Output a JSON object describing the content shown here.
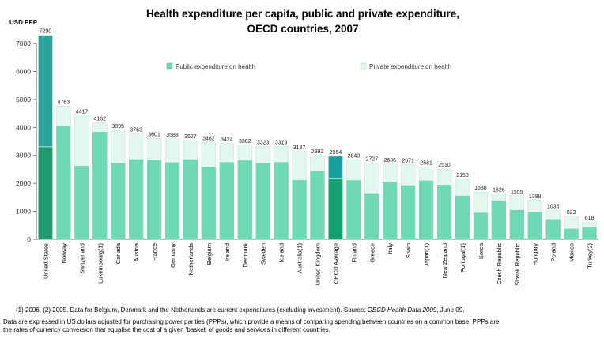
{
  "chart_data": {
    "type": "bar",
    "stacked": true,
    "title_line1": "Health expenditure per capita, public and private expenditure,",
    "title_line2": "OECD countries, 2007",
    "ylabel": "USD PPP",
    "ylim": [
      0,
      7000
    ],
    "yticks": [
      0,
      1000,
      2000,
      3000,
      4000,
      5000,
      6000,
      7000
    ],
    "grid": false,
    "legend_position": "top",
    "series": [
      {
        "name": "Public expenditure on health",
        "color": "#6fd8b4",
        "values": [
          3307,
          4051,
          2640,
          3850,
          2740,
          2870,
          2840,
          2760,
          2870,
          2600,
          2770,
          2830,
          2730,
          2770,
          2130,
          2460,
          2180,
          2120,
          1660,
          2060,
          1940,
          2110,
          1960,
          1570,
          960,
          1400,
          1060,
          990,
          730,
          390,
          430
        ]
      },
      {
        "name": "Private expenditure on health",
        "color": "#e2f8ee",
        "values": [
          3983,
          712,
          1777,
          312,
          1155,
          893,
          761,
          828,
          657,
          862,
          654,
          532,
          593,
          549,
          1007,
          532,
          784,
          720,
          1067,
          626,
          731,
          471,
          550,
          580,
          728,
          226,
          495,
          398,
          305,
          433,
          188
        ]
      }
    ],
    "highlight_colors": {
      "United States": {
        "public": "#1e9a6e",
        "private": "#2aa39a"
      },
      "OECD Average": {
        "public": "#14a070",
        "private": "#17a0a0"
      }
    },
    "categories": [
      "United States",
      "Norway",
      "Switzerland",
      "Luxembourg(1)",
      "Canada",
      "Austria",
      "France",
      "Germany",
      "Netherlands",
      "Belgium",
      "Ireland",
      "Denmark",
      "Sweden",
      "Iceland",
      "Australia(1)",
      "United Kingdom",
      "OECD Average",
      "Finland",
      "Greece",
      "Italy",
      "Spain",
      "Japan(1)",
      "New Zealand",
      "Portugal(1)",
      "Korea",
      "Czech Republic",
      "Slovak Republic",
      "Hungary",
      "Poland",
      "Mexico",
      "Turkey(2)"
    ],
    "totals": [
      7290,
      4763,
      4417,
      4162,
      3895,
      3763,
      3601,
      3588,
      3527,
      3462,
      3424,
      3362,
      3323,
      3319,
      3137,
      2992,
      2964,
      2840,
      2727,
      2686,
      2671,
      2581,
      2510,
      2150,
      1688,
      1626,
      1555,
      1388,
      1035,
      823,
      618
    ],
    "total_labels": [
      "7290",
      "4763",
      "4417",
      "4162",
      "3895",
      "3763",
      "3601",
      "3588",
      "3527",
      "3462",
      "3424",
      "3362",
      "3323",
      "3319",
      "3137",
      "2992",
      "2964",
      "2840",
      "2727",
      "2686",
      "2671",
      "2581",
      "2510",
      "2150",
      "1688",
      "1626",
      "1555",
      "1388",
      "1035",
      "823",
      "618"
    ]
  },
  "footnotes": {
    "note1_prefix": "(1) 2006, (2) 2005.  Data for Belgium, Denmark and the Netherlands are current expenditures (excluding investment).  Source: ",
    "note1_source": "OECD Health Data 2009",
    "note1_suffix": ", June 09.",
    "note2": "Data are expressed in US dollars adjusted for purchasing power parities (PPPs), which provide a means of comparing spending between countries on a common base. PPPs are",
    "note3": "the rates of currency conversion that equalise the cost of a given 'basket' of goods and services in different countries."
  }
}
